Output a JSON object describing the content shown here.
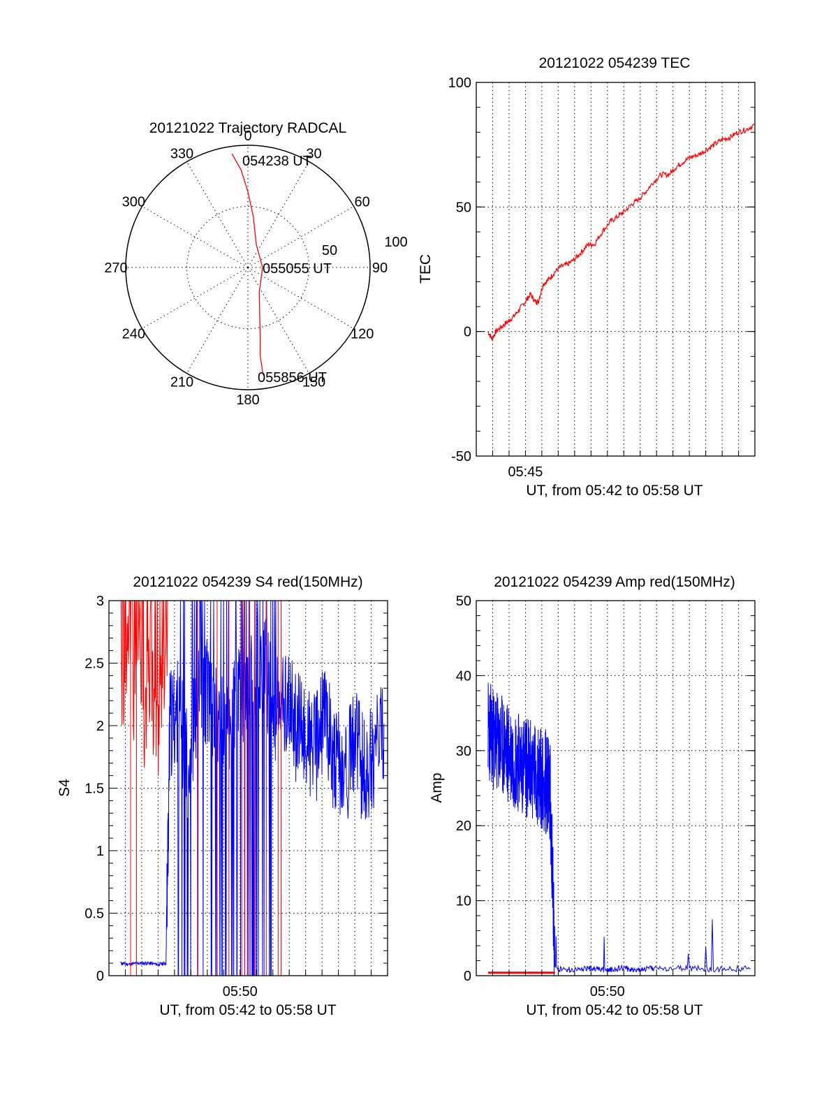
{
  "chart_data": [
    {
      "id": "trajectory",
      "type": "scatter",
      "title": "20121022 Trajectory RADCAL",
      "projection": "polar",
      "azimuth_labels": [
        "0",
        "30",
        "60",
        "90",
        "120",
        "150",
        "180",
        "210",
        "240",
        "270",
        "300",
        "330"
      ],
      "radius_labels": [
        "50",
        "100"
      ],
      "rlim": [
        0,
        100
      ],
      "grid": true,
      "series": [
        {
          "color": "#ff0000",
          "points": [
            {
              "az": 352,
              "r": 94
            },
            {
              "az": 356,
              "r": 80
            },
            {
              "az": 0,
              "r": 62
            },
            {
              "az": 6,
              "r": 42
            },
            {
              "az": 20,
              "r": 20
            },
            {
              "az": 90,
              "r": 12
            },
            {
              "az": 155,
              "r": 22
            },
            {
              "az": 166,
              "r": 40
            },
            {
              "az": 170,
              "r": 58
            },
            {
              "az": 172,
              "r": 72
            },
            {
              "az": 172,
              "r": 89
            }
          ]
        }
      ],
      "annotations": [
        "054238 UT",
        "055055 UT",
        "055856 UT"
      ]
    },
    {
      "id": "tec",
      "type": "line",
      "title": "20121022 054239 TEC",
      "ylabel": "TEC",
      "xlabel": "UT, from 05:42 to 05:58 UT",
      "x_tick_labels": [
        {
          "t": 5.75,
          "label": "05:45"
        }
      ],
      "xlim": [
        5.7,
        5.9833
      ],
      "ylim": [
        -50,
        100
      ],
      "y_ticks": [
        -50,
        0,
        50,
        100
      ],
      "grid": "dotted",
      "series": [
        {
          "color": "#ff0000",
          "x": [
            5.712,
            5.716,
            5.72,
            5.726,
            5.732,
            5.738,
            5.744,
            5.75,
            5.755,
            5.76,
            5.763,
            5.768,
            5.774,
            5.78,
            5.786,
            5.793,
            5.8,
            5.807,
            5.814,
            5.82,
            5.828,
            5.836,
            5.843,
            5.85,
            5.858,
            5.865,
            5.872,
            5.88,
            5.888,
            5.896,
            5.903,
            5.91,
            5.918,
            5.926,
            5.934,
            5.942,
            5.95,
            5.958,
            5.966,
            5.974,
            5.983
          ],
          "y": [
            0,
            -3,
            0,
            2,
            4,
            6,
            9,
            12,
            15,
            12,
            12,
            19,
            21,
            24,
            26,
            27,
            29,
            32,
            35,
            35,
            40,
            44,
            46,
            48,
            51,
            53,
            56,
            60,
            63,
            63,
            66,
            68,
            70,
            71,
            73,
            75,
            77,
            78,
            80,
            81,
            83
          ]
        }
      ]
    },
    {
      "id": "s4",
      "type": "line",
      "title": "20121022 054239 S4 red(150MHz)",
      "ylabel": "S4",
      "xlabel": "UT, from 05:42 to 05:58 UT",
      "x_tick_labels": [
        {
          "t": 5.8333,
          "label": "05:50"
        }
      ],
      "xlim": [
        5.7,
        5.9833
      ],
      "ylim": [
        0,
        3
      ],
      "y_ticks": [
        0,
        0.5,
        1,
        1.5,
        2,
        2.5,
        3
      ],
      "grid": "dotted",
      "series": [
        {
          "color": "#0000ff",
          "x": [
            5.712,
            5.72,
            5.73,
            5.74,
            5.75,
            5.758,
            5.762,
            5.77,
            5.78,
            5.79,
            5.8,
            5.81,
            5.82,
            5.83,
            5.84,
            5.85,
            5.86,
            5.87,
            5.88,
            5.89,
            5.9,
            5.91,
            5.92,
            5.93,
            5.94,
            5.95,
            5.96,
            5.97,
            5.98
          ],
          "y": [
            0.1,
            0.09,
            0.1,
            0.1,
            0.09,
            0.1,
            2.0,
            2.1,
            1.7,
            2.2,
            2.3,
            2.0,
            1.9,
            2.2,
            2.1,
            2.5,
            2.4,
            2.1,
            2.2,
            2.0,
            1.9,
            1.8,
            2.1,
            1.7,
            1.6,
            1.9,
            1.6,
            1.8,
            1.9
          ]
        },
        {
          "color": "#ff0000",
          "x": [
            5.712,
            5.718,
            5.724,
            5.73,
            5.736,
            5.742,
            5.748,
            5.754,
            5.76
          ],
          "y": [
            2.3,
            2.6,
            2.1,
            2.7,
            2.0,
            2.5,
            1.8,
            2.4,
            2.2
          ]
        }
      ]
    },
    {
      "id": "amp",
      "type": "line",
      "title": "20121022 054239 Amp red(150MHz)",
      "ylabel": "Amp",
      "xlabel": "UT, from 05:42 to 05:58 UT",
      "x_tick_labels": [
        {
          "t": 5.8333,
          "label": "05:50"
        }
      ],
      "xlim": [
        5.7,
        5.9833
      ],
      "ylim": [
        0,
        50
      ],
      "y_ticks": [
        0,
        10,
        20,
        30,
        40,
        50
      ],
      "grid": "dotted",
      "series": [
        {
          "color": "#0000ff",
          "x": [
            5.712,
            5.72,
            5.73,
            5.74,
            5.75,
            5.76,
            5.77,
            5.775,
            5.78,
            5.79,
            5.8,
            5.81,
            5.82,
            5.83,
            5.84,
            5.85,
            5.86,
            5.87,
            5.88,
            5.9,
            5.92,
            5.94,
            5.96,
            5.98
          ],
          "y": [
            33,
            31,
            30,
            29,
            28,
            27,
            26,
            25,
            1,
            0.8,
            0.8,
            1,
            0.9,
            0.8,
            0.9,
            1,
            0.8,
            0.9,
            1,
            0.9,
            1.0,
            0.8,
            0.9,
            1.0
          ]
        },
        {
          "color": "#ff0000",
          "x": [
            5.712,
            5.73,
            5.75,
            5.77,
            5.78
          ],
          "y": [
            0.4,
            0.4,
            0.4,
            0.4,
            0.4
          ]
        }
      ]
    }
  ]
}
